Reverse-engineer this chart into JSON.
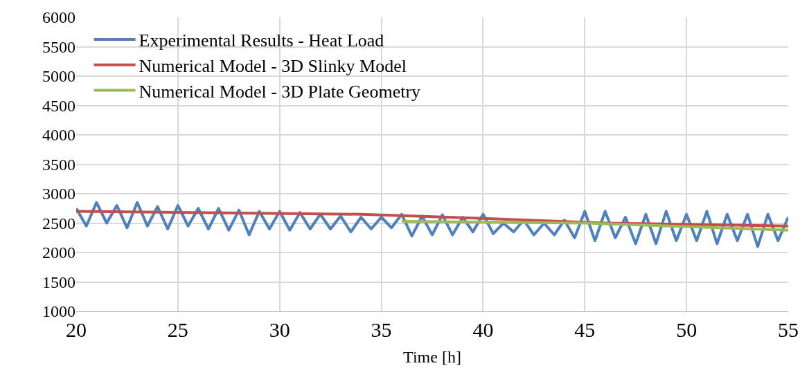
{
  "chart_data": {
    "type": "line",
    "xlabel": "Time [h]",
    "xlim": [
      20,
      55
    ],
    "xticks": [
      20,
      25,
      30,
      35,
      40,
      45,
      50,
      55
    ],
    "ylim": [
      1000,
      6000
    ],
    "yticks": [
      1000,
      1500,
      2000,
      2500,
      3000,
      3500,
      4000,
      4500,
      5000,
      5500,
      6000
    ],
    "grid": true,
    "legend": "top left",
    "marker": "none",
    "line_style": "solid",
    "series": [
      {
        "name": "Experimental Results - Heat Load",
        "color": "#4f81bd",
        "x": [
          20,
          20.5,
          21,
          21.5,
          22,
          22.5,
          23,
          23.5,
          24,
          24.5,
          25,
          25.5,
          26,
          26.5,
          27,
          27.5,
          28,
          28.5,
          29,
          29.5,
          30,
          30.5,
          31,
          31.5,
          32,
          32.5,
          33,
          33.5,
          34,
          34.5,
          35,
          35.5,
          36,
          36.5,
          37,
          37.5,
          38,
          38.5,
          39,
          39.5,
          40,
          40.5,
          41,
          41.5,
          42,
          42.5,
          43,
          43.5,
          44,
          44.5,
          45,
          45.5,
          46,
          46.5,
          47,
          47.5,
          48,
          48.5,
          49,
          49.5,
          50,
          50.5,
          51,
          51.5,
          52,
          52.5,
          53,
          53.5,
          54,
          54.5,
          55
        ],
        "values": [
          2750,
          2450,
          2850,
          2500,
          2800,
          2420,
          2850,
          2450,
          2780,
          2400,
          2800,
          2450,
          2750,
          2400,
          2750,
          2380,
          2720,
          2300,
          2700,
          2400,
          2700,
          2380,
          2680,
          2400,
          2650,
          2400,
          2620,
          2350,
          2600,
          2400,
          2600,
          2420,
          2650,
          2280,
          2620,
          2300,
          2640,
          2300,
          2600,
          2350,
          2650,
          2320,
          2500,
          2350,
          2550,
          2300,
          2500,
          2300,
          2550,
          2250,
          2700,
          2200,
          2700,
          2250,
          2600,
          2150,
          2650,
          2150,
          2700,
          2200,
          2650,
          2200,
          2700,
          2150,
          2650,
          2200,
          2650,
          2100,
          2650,
          2200,
          2600
        ]
      },
      {
        "name": "Numerical Model - 3D Slinky Model",
        "color": "#c0504d",
        "x": [
          20,
          34,
          40,
          46,
          55
        ],
        "values": [
          2700,
          2650,
          2580,
          2500,
          2450
        ]
      },
      {
        "name": "Numerical Model - 3D Plate Geometry",
        "color": "#9bbb59",
        "x": [
          36,
          45,
          55
        ],
        "values": [
          2530,
          2500,
          2380
        ]
      }
    ]
  }
}
